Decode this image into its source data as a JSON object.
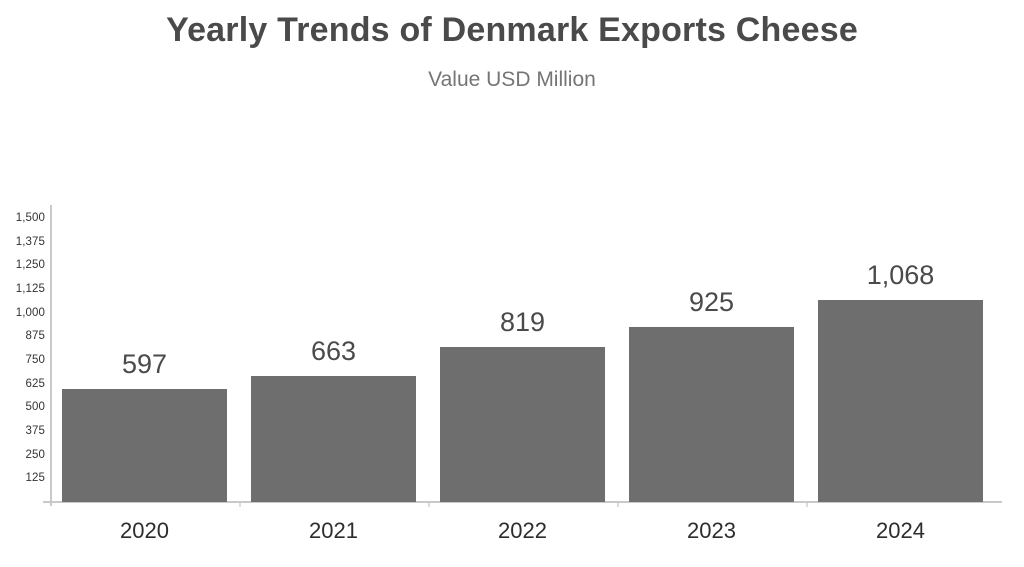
{
  "chart_data": {
    "type": "bar",
    "title": "Yearly Trends of Denmark Exports Cheese",
    "subtitle": "Value USD Million",
    "categories": [
      "2020",
      "2021",
      "2022",
      "2023",
      "2024"
    ],
    "values": [
      597,
      663,
      819,
      925,
      1068
    ],
    "value_labels": [
      "597",
      "663",
      "819",
      "925",
      "1,068"
    ],
    "xlabel": "",
    "ylabel": "",
    "ylim": [
      0,
      1500
    ],
    "yticks": [
      125,
      250,
      375,
      500,
      625,
      750,
      875,
      1000,
      1125,
      1250,
      1375,
      1500
    ],
    "ytick_labels": [
      "125",
      "250",
      "375",
      "500",
      "625",
      "750",
      "875",
      "1,000",
      "1,125",
      "1,250",
      "1,375",
      "1,500"
    ],
    "grid": false,
    "legend": "none",
    "bar_color": "#6e6e6e",
    "value_label_color": "#4a4a4a",
    "category_label_color": "#2d2d2d",
    "ytick_label_color": "#333333",
    "axis_color": "#c9c9c9",
    "title_color": "#4a4a4a",
    "subtitle_color": "#757575",
    "background_color": "#ffffff"
  }
}
